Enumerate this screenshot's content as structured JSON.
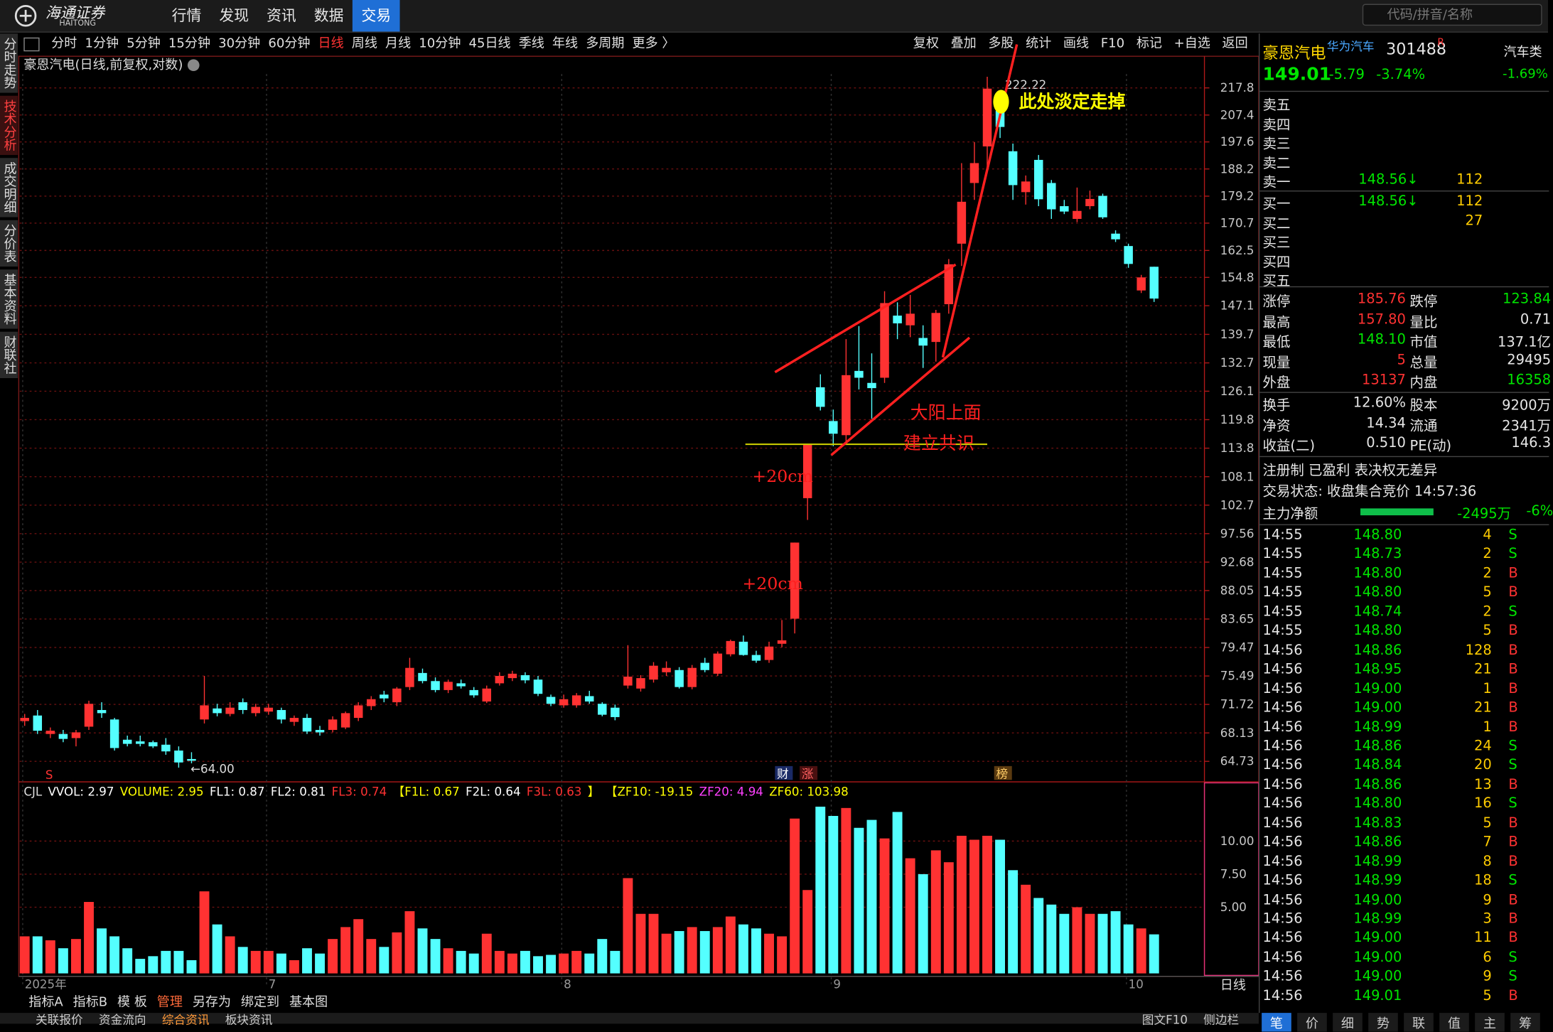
{
  "header": {
    "logo": "海通证券",
    "logo_en": "HAITONG",
    "nav": [
      "行情",
      "发现",
      "资讯",
      "数据",
      "交易"
    ],
    "search": "代码/拼音/名称"
  },
  "toolbar": {
    "periods": [
      "分时",
      "1分钟",
      "5分钟",
      "15分钟",
      "30分钟",
      "60分钟",
      "日线",
      "周线",
      "月线",
      "10分钟",
      "45日线",
      "季线",
      "年线",
      "多周期",
      "更多 〉"
    ],
    "tools": [
      "复权",
      "叠加",
      "多股",
      "统计",
      "画线",
      "F10",
      "标记",
      "+自选",
      "返回"
    ]
  },
  "sidebar": [
    "分时走势",
    "技术分析",
    "成交明细",
    "分价表",
    "基本资料",
    "财联社"
  ],
  "chart": {
    "type": "candlestick",
    "title": "豪恩汽电(日线,前复权,对数)",
    "log_scale": true,
    "grid": true,
    "up_color": "#ff3232",
    "down_color": "#54ffff",
    "categories": [
      "2025年",
      null,
      null,
      null,
      null,
      null,
      null,
      null,
      null,
      null,
      null,
      null,
      null,
      null,
      null,
      null,
      null,
      null,
      null,
      "7",
      null,
      null,
      null,
      null,
      null,
      null,
      null,
      null,
      null,
      null,
      null,
      null,
      null,
      null,
      null,
      null,
      null,
      null,
      null,
      null,
      null,
      null,
      "8",
      null,
      null,
      null,
      null,
      null,
      null,
      null,
      null,
      null,
      null,
      null,
      null,
      null,
      null,
      null,
      null,
      null,
      null,
      null,
      null,
      "9",
      null,
      null,
      null,
      null,
      null,
      null,
      null,
      null,
      null,
      null,
      null,
      null,
      null,
      null,
      null,
      null,
      null,
      null,
      null,
      null,
      null,
      null,
      "10",
      null,
      null,
      null
    ],
    "candles": [
      [
        69.6,
        70.5,
        69.0,
        70.0
      ],
      [
        70.3,
        71.0,
        68.0,
        68.4
      ],
      [
        68.0,
        68.8,
        67.5,
        68.4
      ],
      [
        68.0,
        68.5,
        67.0,
        67.4
      ],
      [
        67.5,
        68.5,
        66.5,
        68.2
      ],
      [
        68.9,
        72.2,
        68.5,
        71.8
      ],
      [
        71.0,
        72.0,
        70.0,
        70.6
      ],
      [
        69.8,
        70.0,
        66.0,
        66.3
      ],
      [
        67.3,
        67.8,
        66.5,
        66.8
      ],
      [
        67.1,
        67.8,
        66.5,
        66.8
      ],
      [
        67.0,
        67.2,
        66.3,
        66.5
      ],
      [
        66.7,
        67.5,
        65.5,
        65.9
      ],
      [
        66.0,
        66.5,
        64.0,
        64.6
      ],
      [
        65.0,
        65.8,
        64.5,
        64.8
      ],
      [
        69.8,
        75.5,
        69.3,
        71.6
      ],
      [
        71.2,
        71.8,
        70.2,
        70.6
      ],
      [
        70.5,
        72.0,
        70.2,
        71.3
      ],
      [
        72.0,
        72.5,
        70.5,
        71.0
      ],
      [
        70.6,
        71.8,
        70.2,
        71.4
      ],
      [
        70.8,
        71.8,
        70.4,
        71.3
      ],
      [
        71.0,
        71.3,
        69.3,
        69.8
      ],
      [
        69.5,
        70.3,
        69.0,
        70.0
      ],
      [
        70.0,
        70.5,
        68.0,
        68.3
      ],
      [
        68.5,
        69.0,
        67.8,
        68.2
      ],
      [
        68.5,
        70.2,
        68.2,
        69.8
      ],
      [
        68.8,
        70.8,
        68.6,
        70.6
      ],
      [
        70.0,
        72.0,
        69.6,
        71.6
      ],
      [
        71.5,
        72.8,
        71.0,
        72.4
      ],
      [
        73.0,
        73.5,
        72.0,
        72.5
      ],
      [
        72.0,
        74.0,
        71.5,
        73.8
      ],
      [
        74.0,
        78.0,
        73.6,
        76.6
      ],
      [
        75.9,
        76.5,
        74.5,
        74.8
      ],
      [
        74.8,
        75.3,
        73.3,
        73.6
      ],
      [
        73.6,
        75.0,
        73.2,
        74.7
      ],
      [
        74.5,
        75.0,
        73.8,
        74.1
      ],
      [
        73.6,
        74.0,
        72.6,
        72.9
      ],
      [
        72.1,
        74.2,
        71.9,
        73.8
      ],
      [
        74.5,
        76.0,
        74.2,
        75.5
      ],
      [
        75.2,
        76.2,
        74.8,
        75.8
      ],
      [
        75.6,
        76.0,
        74.5,
        74.9
      ],
      [
        75.0,
        75.5,
        72.8,
        73.1
      ],
      [
        72.7,
        73.0,
        71.5,
        71.8
      ],
      [
        71.6,
        73.0,
        71.3,
        72.4
      ],
      [
        71.6,
        73.2,
        71.3,
        72.9
      ],
      [
        72.8,
        73.5,
        71.8,
        72.1
      ],
      [
        71.8,
        72.0,
        70.2,
        70.4
      ],
      [
        71.3,
        71.7,
        69.7,
        70.1
      ],
      [
        74.2,
        79.8,
        73.8,
        75.4
      ],
      [
        73.8,
        75.6,
        73.4,
        75.2
      ],
      [
        75.0,
        77.4,
        74.6,
        76.9
      ],
      [
        76.0,
        77.5,
        75.5,
        76.6
      ],
      [
        76.3,
        76.7,
        73.8,
        74.0
      ],
      [
        74.0,
        77.0,
        73.7,
        76.6
      ],
      [
        77.3,
        78.0,
        76.0,
        76.3
      ],
      [
        75.8,
        78.9,
        75.5,
        78.6
      ],
      [
        78.5,
        80.6,
        78.2,
        80.4
      ],
      [
        80.3,
        81.2,
        78.3,
        78.4
      ],
      [
        78.4,
        79.0,
        77.3,
        77.6
      ],
      [
        77.7,
        80.3,
        77.3,
        79.6
      ],
      [
        80.0,
        83.5,
        79.5,
        80.5
      ],
      [
        83.7,
        96.0,
        81.5,
        96.0
      ],
      [
        104.0,
        114.7,
        100.0,
        114.5
      ],
      [
        127.0,
        130.0,
        121.8,
        122.6
      ],
      [
        119.5,
        122.0,
        114.2,
        116.8
      ],
      [
        116.5,
        138.5,
        115.0,
        129.8
      ],
      [
        130.8,
        141.8,
        126.5,
        129.2
      ],
      [
        128.0,
        135.0,
        120.0,
        126.8
      ],
      [
        129.2,
        151.0,
        128.0,
        147.8
      ],
      [
        144.5,
        148.0,
        138.5,
        142.5
      ],
      [
        142.0,
        150.0,
        139.0,
        145.0
      ],
      [
        138.8,
        142.0,
        131.5,
        136.9
      ],
      [
        137.8,
        146.0,
        133.0,
        145.2
      ],
      [
        147.5,
        160.0,
        145.0,
        158.5
      ],
      [
        164.5,
        190.2,
        158.0,
        177.4
      ],
      [
        183.5,
        197.5,
        178.0,
        190.2
      ],
      [
        196.0,
        222.22,
        188.0,
        217.5
      ],
      [
        209.0,
        213.0,
        199.0,
        203.0
      ],
      [
        194.3,
        197.0,
        178.0,
        182.8
      ],
      [
        180.5,
        186.0,
        176.5,
        184.0
      ],
      [
        191.3,
        193.0,
        176.0,
        178.2
      ],
      [
        183.5,
        184.5,
        172.0,
        175.0
      ],
      [
        176.0,
        178.0,
        173.5,
        174.3
      ],
      [
        172.0,
        182.0,
        171.0,
        174.5
      ],
      [
        176.0,
        181.0,
        175.0,
        178.3
      ],
      [
        179.3,
        180.0,
        172.0,
        172.5
      ],
      [
        167.5,
        168.5,
        165.0,
        165.8
      ],
      [
        163.8,
        164.5,
        157.5,
        158.6
      ],
      [
        151.2,
        155.5,
        150.5,
        154.8
      ],
      [
        157.8,
        157.8,
        148.1,
        149.01
      ]
    ],
    "ylim": [
      62.6,
      223.3
    ],
    "yticks": [
      217.8,
      207.4,
      197.6,
      188.2,
      179.2,
      170.7,
      162.5,
      154.8,
      147.1,
      139.7,
      132.7,
      126.1,
      119.8,
      113.8,
      108.1,
      102.7,
      97.56,
      92.68,
      88.05,
      83.65,
      79.47,
      75.49,
      71.72,
      68.13,
      64.73
    ],
    "high_label": "222.22",
    "low_label": "←64.00",
    "period_label": "日线",
    "events": [
      "S",
      "财",
      "涨",
      "榜"
    ],
    "annotations": [
      "此处淡定走掉",
      "大阳上面",
      "建立共识",
      "+20cm",
      "+20cm"
    ],
    "volume": {
      "values": [
        2.8,
        2.8,
        2.5,
        1.9,
        2.6,
        5.4,
        3.4,
        2.8,
        1.9,
        1.1,
        1.3,
        1.7,
        1.7,
        1.0,
        6.2,
        3.7,
        2.8,
        2.0,
        1.7,
        1.7,
        1.5,
        1.0,
        1.9,
        1.5,
        2.6,
        3.5,
        4.1,
        2.6,
        2.0,
        3.1,
        4.7,
        3.4,
        2.6,
        1.9,
        1.7,
        1.5,
        3.0,
        1.7,
        1.5,
        1.7,
        1.3,
        1.4,
        1.5,
        1.7,
        1.5,
        2.6,
        1.7,
        7.2,
        4.5,
        4.5,
        3.0,
        3.2,
        3.5,
        3.2,
        3.5,
        4.3,
        3.7,
        3.4,
        3.0,
        2.8,
        11.7,
        6.3,
        12.6,
        11.9,
        12.5,
        11.0,
        11.6,
        10.2,
        12.2,
        8.7,
        7.5,
        9.3,
        8.4,
        10.4,
        10.1,
        10.4,
        10.1,
        7.8,
        6.7,
        5.7,
        5.2,
        4.5,
        5.0,
        4.5,
        4.5,
        4.7,
        3.7,
        3.4,
        2.95
      ],
      "ylim": [
        0,
        14.1
      ],
      "yticks": [
        {
          "value": 5,
          "label": "5.00"
        },
        {
          "value": 7.5,
          "label": "7.50"
        },
        {
          "value": 10,
          "label": "10.00"
        }
      ]
    },
    "indicator": [
      {
        "text": "CJL",
        "color": "#dddddd"
      },
      {
        "text": "VVOL: 2.97",
        "color": "#ffffff"
      },
      {
        "text": "VOLUME: 2.95",
        "color": "#ffff00"
      },
      {
        "text": "FL1: 0.87",
        "color": "#ffffff"
      },
      {
        "text": "FL2: 0.81",
        "color": "#ffffff"
      },
      {
        "text": "FL3: 0.74",
        "color": "#ff3232"
      },
      {
        "text": "【F1L: 0.67",
        "color": "#ffff00"
      },
      {
        "text": "F2L: 0.64",
        "color": "#ffffff"
      },
      {
        "text": "F3L: 0.63",
        "color": "#ff3232"
      },
      {
        "text": "】",
        "color": "#ffff00"
      },
      {
        "text": "【ZF10: -19.15",
        "color": "#ffff00"
      },
      {
        "text": "ZF20: 4.94",
        "color": "#ff40ff"
      },
      {
        "text": "ZF60: 103.98",
        "color": "#ffff00"
      }
    ]
  },
  "bottom": {
    "tabs": [
      "指标A",
      "指标B",
      "模 板",
      "管理",
      "另存为",
      "绑定到",
      "基本图"
    ],
    "bar": [
      "关联报价",
      "资金流向",
      "综合资讯",
      "板块资讯"
    ],
    "bar_right": [
      "图文F10",
      "侧边栏"
    ],
    "right_tabs": [
      "笔",
      "价",
      "细",
      "势",
      "联",
      "值",
      "主",
      "筹"
    ]
  },
  "quote": {
    "name": "豪恩汽电",
    "concept": "华为汽车",
    "code": "301488",
    "flag": "R",
    "price": "149.01",
    "change": "-5.79",
    "pct": "-3.74%",
    "industry": "汽车类",
    "industry_pct": "-1.69%",
    "book": [
      [
        "卖五",
        "",
        ""
      ],
      [
        "卖四",
        "",
        ""
      ],
      [
        "卖三",
        "",
        ""
      ],
      [
        "卖二",
        "",
        ""
      ],
      [
        "卖一",
        "148.56↓",
        "112"
      ],
      [
        "买一",
        "148.56↓",
        "112"
      ],
      [
        "买二",
        "",
        "27"
      ],
      [
        "买三",
        "",
        ""
      ],
      [
        "买四",
        "",
        ""
      ],
      [
        "买五",
        "",
        ""
      ]
    ],
    "stats": [
      [
        "涨停",
        "185.76",
        "跌停",
        "123.84"
      ],
      [
        "最高",
        "157.80",
        "量比",
        "0.71"
      ],
      [
        "最低",
        "148.10",
        "市值",
        "137.1亿"
      ],
      [
        "现量",
        "5",
        "总量",
        "29495"
      ],
      [
        "外盘",
        "13137",
        "内盘",
        "16358"
      ]
    ],
    "stats2": [
      [
        "换手",
        "12.60%",
        "股本",
        "9200万"
      ],
      [
        "净资",
        "14.34",
        "流通",
        "2341万"
      ],
      [
        "收益(二)",
        "0.510",
        "PE(动)",
        "146.3"
      ]
    ],
    "tags": "注册制 已盈利 表决权无差异",
    "status": "交易状态: 收盘集合竞价 14:57:36",
    "flow_label": "主力净额",
    "flow_value": "-2495万",
    "flow_pct": "-6%",
    "ticks": [
      [
        "14:55",
        "148.80",
        "4",
        "S"
      ],
      [
        "14:55",
        "148.73",
        "2",
        "S"
      ],
      [
        "14:55",
        "148.80",
        "2",
        "B"
      ],
      [
        "14:55",
        "148.80",
        "5",
        "B"
      ],
      [
        "14:55",
        "148.74",
        "2",
        "S"
      ],
      [
        "14:55",
        "148.80",
        "5",
        "B"
      ],
      [
        "14:56",
        "148.86",
        "128",
        "B"
      ],
      [
        "14:56",
        "148.95",
        "21",
        "B"
      ],
      [
        "14:56",
        "149.00",
        "1",
        "B"
      ],
      [
        "14:56",
        "149.00",
        "21",
        "B"
      ],
      [
        "14:56",
        "148.99",
        "1",
        "B"
      ],
      [
        "14:56",
        "148.86",
        "24",
        "S"
      ],
      [
        "14:56",
        "148.84",
        "20",
        "S"
      ],
      [
        "14:56",
        "148.86",
        "13",
        "B"
      ],
      [
        "14:56",
        "148.80",
        "16",
        "S"
      ],
      [
        "14:56",
        "148.83",
        "5",
        "B"
      ],
      [
        "14:56",
        "148.86",
        "7",
        "B"
      ],
      [
        "14:56",
        "148.99",
        "8",
        "B"
      ],
      [
        "14:56",
        "148.99",
        "18",
        "S"
      ],
      [
        "14:56",
        "149.00",
        "9",
        "B"
      ],
      [
        "14:56",
        "148.99",
        "3",
        "B"
      ],
      [
        "14:56",
        "149.00",
        "11",
        "B"
      ],
      [
        "14:56",
        "149.00",
        "6",
        "S"
      ],
      [
        "14:56",
        "149.00",
        "9",
        "S"
      ],
      [
        "14:56",
        "149.01",
        "5",
        "B"
      ]
    ]
  }
}
